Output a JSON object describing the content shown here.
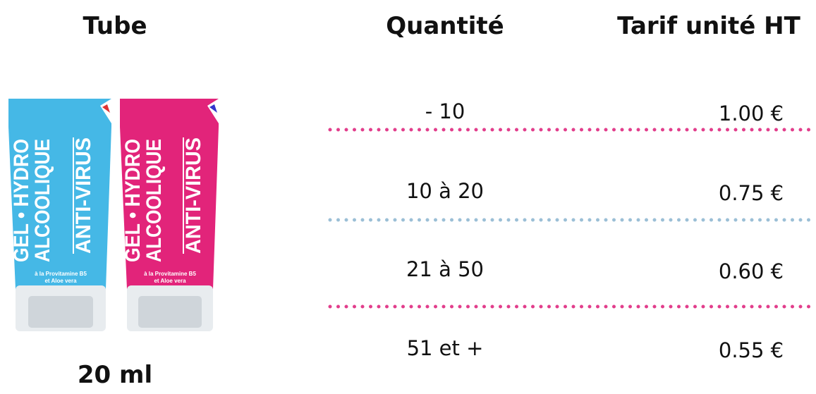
{
  "header": {
    "columns": [
      "Tube",
      "Quantité",
      "Tarif unité HT"
    ]
  },
  "product": {
    "size": "20 ml",
    "tube_text": [
      "GEL • HYDRO",
      "ALCOOLIQUE",
      "ANTI-VIRUS"
    ],
    "tube_subtext": [
      "à la Provitamine B5",
      "et Aloe vera"
    ]
  },
  "table": {
    "rows": [
      [
        "- 10",
        "1.00 €"
      ],
      [
        "10 à 20",
        "0.75 €"
      ],
      [
        "21 à 50",
        "0.60 €"
      ],
      [
        "51 et +",
        "0.55 €"
      ]
    ]
  }
}
